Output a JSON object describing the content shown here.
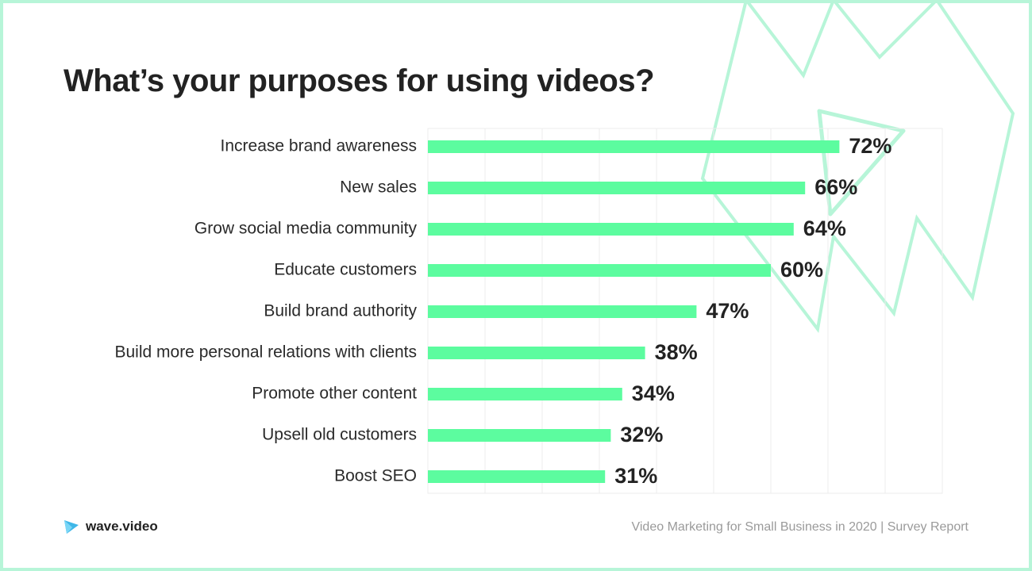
{
  "title": "What’s your purposes for using videos?",
  "brand": {
    "name": "wave.video",
    "icon": "play-triangle-icon"
  },
  "footer": {
    "text": "Video Marketing for Small Business in 2020 | Survey Report"
  },
  "colors": {
    "bar": "#5cfc9f",
    "decoration": "#b7f5d8",
    "grid": "#ececec",
    "logo": "#3fb7e8"
  },
  "chart_data": {
    "type": "bar",
    "orientation": "horizontal",
    "categories": [
      "Increase brand awareness",
      "New sales",
      "Grow social media community",
      "Educate customers",
      "Build brand authority",
      "Build more personal relations with clients",
      "Promote other content",
      "Upsell old customers",
      "Boost SEO"
    ],
    "values": [
      72,
      66,
      64,
      60,
      47,
      38,
      34,
      32,
      31
    ],
    "value_labels": [
      "72%",
      "66%",
      "64%",
      "60%",
      "47%",
      "38%",
      "34%",
      "32%",
      "31%"
    ],
    "xlim": [
      0,
      90
    ],
    "grid": true
  }
}
